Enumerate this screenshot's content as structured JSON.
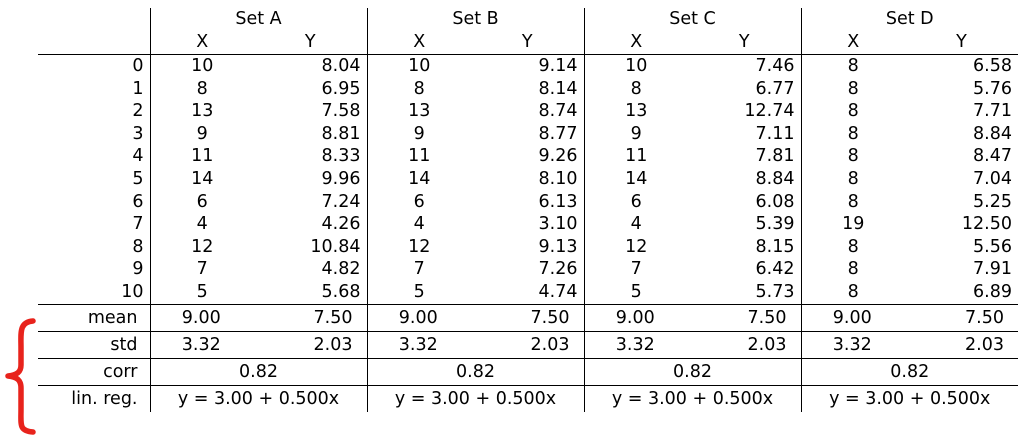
{
  "sets": [
    "Set A",
    "Set B",
    "Set C",
    "Set D"
  ],
  "col_x": "X",
  "col_y": "Y",
  "index": [
    "0",
    "1",
    "2",
    "3",
    "4",
    "5",
    "6",
    "7",
    "8",
    "9",
    "10"
  ],
  "rows": [
    [
      "10",
      "8.04",
      "10",
      "9.14",
      "10",
      "7.46",
      "8",
      "6.58"
    ],
    [
      "8",
      "6.95",
      "8",
      "8.14",
      "8",
      "6.77",
      "8",
      "5.76"
    ],
    [
      "13",
      "7.58",
      "13",
      "8.74",
      "13",
      "12.74",
      "8",
      "7.71"
    ],
    [
      "9",
      "8.81",
      "9",
      "8.77",
      "9",
      "7.11",
      "8",
      "8.84"
    ],
    [
      "11",
      "8.33",
      "11",
      "9.26",
      "11",
      "7.81",
      "8",
      "8.47"
    ],
    [
      "14",
      "9.96",
      "14",
      "8.10",
      "14",
      "8.84",
      "8",
      "7.04"
    ],
    [
      "6",
      "7.24",
      "6",
      "6.13",
      "6",
      "6.08",
      "8",
      "5.25"
    ],
    [
      "4",
      "4.26",
      "4",
      "3.10",
      "4",
      "5.39",
      "19",
      "12.50"
    ],
    [
      "12",
      "10.84",
      "12",
      "9.13",
      "12",
      "8.15",
      "8",
      "5.56"
    ],
    [
      "7",
      "4.82",
      "7",
      "7.26",
      "7",
      "6.42",
      "8",
      "7.91"
    ],
    [
      "5",
      "5.68",
      "5",
      "4.74",
      "5",
      "5.73",
      "8",
      "6.89"
    ]
  ],
  "stats": {
    "mean": {
      "label": "mean",
      "values": [
        "9.00",
        "7.50",
        "9.00",
        "7.50",
        "9.00",
        "7.50",
        "9.00",
        "7.50"
      ]
    },
    "std": {
      "label": "std",
      "values": [
        "3.32",
        "2.03",
        "3.32",
        "2.03",
        "3.32",
        "2.03",
        "3.32",
        "2.03"
      ]
    },
    "corr": {
      "label": "corr",
      "values": [
        "0.82",
        "0.82",
        "0.82",
        "0.82"
      ]
    },
    "linreg": {
      "label": "lin. reg.",
      "values": [
        "y = 3.00 + 0.500x",
        "y = 3.00 + 0.500x",
        "y = 3.00 + 0.500x",
        "y = 3.00 + 0.500x"
      ]
    }
  },
  "annotation": {
    "brace_color": "#e8231c"
  }
}
